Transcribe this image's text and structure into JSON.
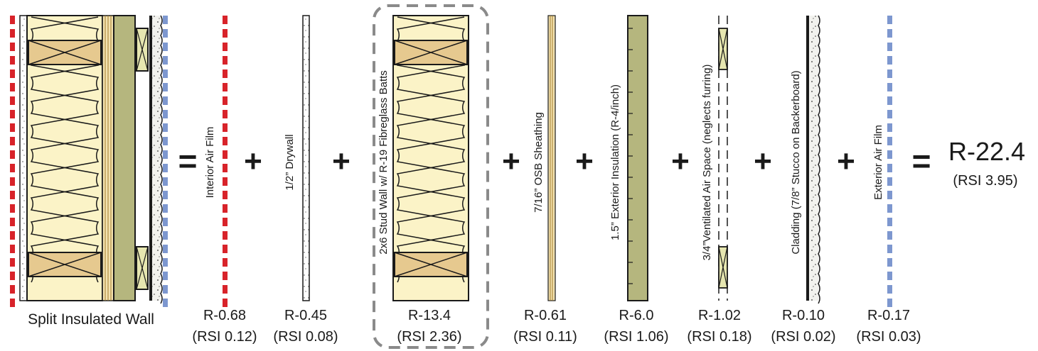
{
  "colors": {
    "interior_air": "#d8232a",
    "exterior_air": "#7d97cf",
    "batt": "#fbf3c7",
    "stud": "#e6c98f",
    "ext_insulation": "#b5b67e",
    "sheathing": "#c8a24c",
    "outline": "#1a1a1a"
  },
  "composite": {
    "label": "Split Insulated Wall",
    "total_r": "R-22.4",
    "total_rsi": "(RSI 3.95)"
  },
  "operators": {
    "equals": "=",
    "plus": "+"
  },
  "layers": [
    {
      "id": "interior-air-film",
      "label": "Interior Air Film",
      "r": "R-0.68",
      "rsi": "(RSI 0.12)"
    },
    {
      "id": "drywall",
      "label": "1/2” Drywall",
      "r": "R-0.45",
      "rsi": "(RSI 0.08)"
    },
    {
      "id": "stud-wall",
      "label": "2x6 Stud Wall w/ R-19 Fibreglass Batts",
      "r": "R-13.4",
      "rsi": "(RSI 2.36)"
    },
    {
      "id": "osb-sheathing",
      "label": "7/16” OSB Sheathing",
      "r": "R-0.61",
      "rsi": "(RSI 0.11)"
    },
    {
      "id": "exterior-insulation",
      "label": "1.5” Exterior Insulation (R-4/inch)",
      "r": "R-6.0",
      "rsi": "(RSI 1.06)"
    },
    {
      "id": "air-space",
      "label": "3/4”Ventilated Air Space (neglects furring)",
      "r": "R-1.02",
      "rsi": "(RSI 0.18)"
    },
    {
      "id": "cladding",
      "label": "Cladding (7/8” Stucco on Backerboard)",
      "r": "R-0.10",
      "rsi": "(RSI 0.02)"
    },
    {
      "id": "exterior-air-film",
      "label": "Exterior Air Film",
      "r": "R-0.17",
      "rsi": "(RSI 0.03)"
    }
  ]
}
